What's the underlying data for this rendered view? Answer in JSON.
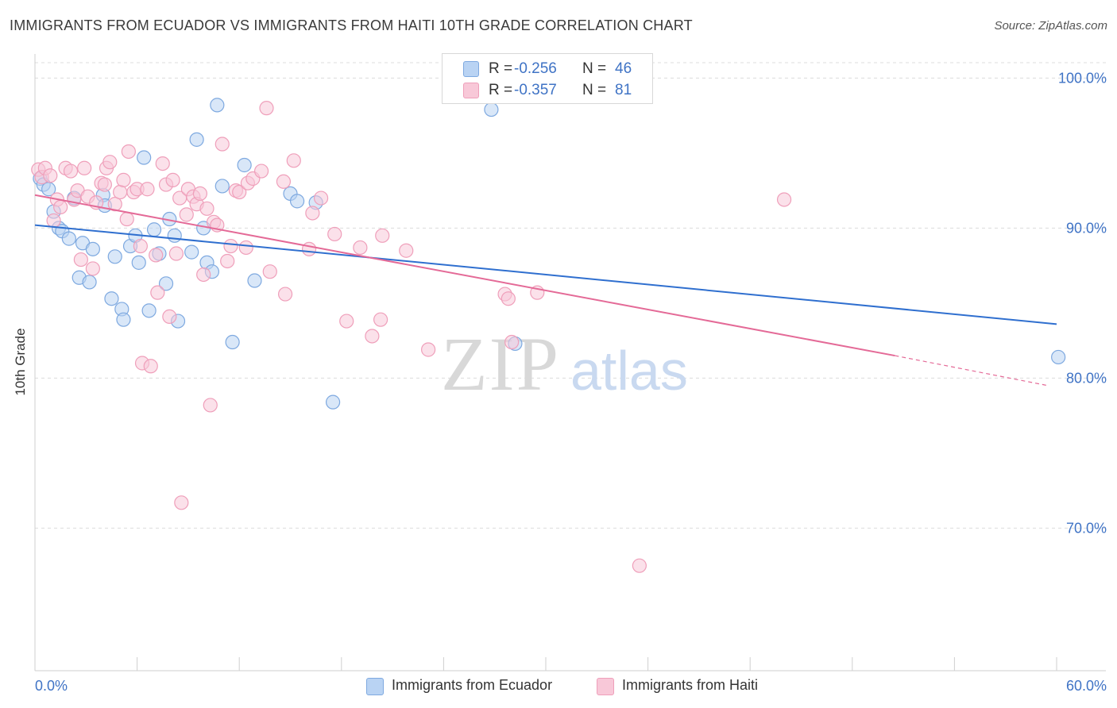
{
  "title": "IMMIGRANTS FROM ECUADOR VS IMMIGRANTS FROM HAITI 10TH GRADE CORRELATION CHART",
  "source": "Source: ZipAtlas.com",
  "watermark": {
    "zip": "ZIP",
    "atlas": "atlas"
  },
  "legend_stats": [
    {
      "r_label": "R =",
      "r_value": "-0.256",
      "n_label": "N =",
      "n_value": "46"
    },
    {
      "r_label": "R =",
      "r_value": "-0.357",
      "n_label": "N =",
      "n_value": "81"
    }
  ],
  "colors": {
    "ecuador_fill": "#b9d3f3",
    "ecuador_stroke": "#7ea9e0",
    "ecuador_line": "#2f6fcf",
    "haiti_fill": "#f8c8d8",
    "haiti_stroke": "#ef9fba",
    "haiti_line": "#e46a97",
    "grid": "#dcdcdc",
    "axis_label": "#3f73c5"
  },
  "chart_data": {
    "type": "scatter",
    "title": "IMMIGRANTS FROM ECUADOR VS IMMIGRANTS FROM HAITI 10TH GRADE CORRELATION CHART",
    "xlabel": "",
    "ylabel": "10th Grade",
    "xlim": [
      0,
      60
    ],
    "ylim": [
      60.5,
      101.5
    ],
    "x_tick_labels": [
      "0.0%",
      "60.0%"
    ],
    "y_ticks": [
      70,
      80,
      90,
      100
    ],
    "y_tick_labels": [
      "70.0%",
      "80.0%",
      "90.0%",
      "100.0%"
    ],
    "grid": true,
    "legend_position": "bottom-center",
    "series": [
      {
        "name": "Immigrants from Ecuador",
        "r": -0.256,
        "n": 46,
        "trend": {
          "x": [
            0,
            60
          ],
          "y": [
            90.2,
            83.6
          ]
        },
        "points": [
          [
            0.3,
            93.3
          ],
          [
            0.5,
            92.9
          ],
          [
            0.8,
            92.6
          ],
          [
            1.1,
            91.1
          ],
          [
            1.4,
            90.0
          ],
          [
            1.6,
            89.8
          ],
          [
            2.0,
            89.3
          ],
          [
            2.3,
            92.0
          ],
          [
            2.6,
            86.7
          ],
          [
            2.8,
            89.0
          ],
          [
            3.2,
            86.4
          ],
          [
            3.4,
            88.6
          ],
          [
            4.0,
            92.2
          ],
          [
            4.1,
            91.5
          ],
          [
            4.5,
            85.3
          ],
          [
            4.7,
            88.1
          ],
          [
            5.1,
            84.6
          ],
          [
            5.2,
            83.9
          ],
          [
            5.6,
            88.8
          ],
          [
            5.9,
            89.5
          ],
          [
            6.1,
            87.7
          ],
          [
            6.4,
            94.7
          ],
          [
            6.7,
            84.5
          ],
          [
            7.0,
            89.9
          ],
          [
            7.3,
            88.3
          ],
          [
            7.7,
            86.3
          ],
          [
            7.9,
            90.6
          ],
          [
            8.2,
            89.5
          ],
          [
            8.4,
            83.8
          ],
          [
            9.2,
            88.4
          ],
          [
            9.5,
            95.9
          ],
          [
            9.9,
            90.0
          ],
          [
            10.1,
            87.7
          ],
          [
            10.4,
            87.1
          ],
          [
            10.7,
            98.2
          ],
          [
            11.0,
            92.8
          ],
          [
            11.6,
            82.4
          ],
          [
            12.3,
            94.2
          ],
          [
            12.9,
            86.5
          ],
          [
            15.0,
            92.3
          ],
          [
            15.4,
            91.8
          ],
          [
            16.5,
            91.7
          ],
          [
            17.5,
            78.4
          ],
          [
            26.8,
            97.9
          ],
          [
            28.2,
            82.3
          ],
          [
            60.1,
            81.4
          ]
        ]
      },
      {
        "name": "Immigrants from Haiti",
        "r": -0.357,
        "n": 81,
        "trend": {
          "x": [
            0,
            50.5
          ],
          "y": [
            92.2,
            81.5
          ]
        },
        "trend_extension": {
          "x": [
            50.5,
            59.5
          ],
          "y": [
            81.5,
            79.5
          ]
        },
        "points": [
          [
            0.2,
            93.9
          ],
          [
            0.4,
            93.4
          ],
          [
            0.6,
            94.0
          ],
          [
            0.9,
            93.5
          ],
          [
            1.1,
            90.5
          ],
          [
            1.3,
            91.9
          ],
          [
            1.5,
            91.4
          ],
          [
            1.8,
            94.0
          ],
          [
            2.1,
            93.8
          ],
          [
            2.3,
            91.9
          ],
          [
            2.5,
            92.5
          ],
          [
            2.7,
            87.9
          ],
          [
            2.9,
            94.0
          ],
          [
            3.1,
            92.1
          ],
          [
            3.4,
            87.3
          ],
          [
            3.6,
            91.7
          ],
          [
            3.9,
            93.0
          ],
          [
            4.1,
            92.9
          ],
          [
            4.2,
            94.0
          ],
          [
            4.4,
            94.4
          ],
          [
            4.7,
            91.6
          ],
          [
            5.0,
            92.4
          ],
          [
            5.2,
            93.2
          ],
          [
            5.4,
            90.6
          ],
          [
            5.5,
            95.1
          ],
          [
            5.8,
            92.4
          ],
          [
            6.0,
            92.6
          ],
          [
            6.2,
            88.8
          ],
          [
            6.3,
            81.0
          ],
          [
            6.6,
            92.6
          ],
          [
            6.8,
            80.8
          ],
          [
            7.1,
            88.2
          ],
          [
            7.2,
            85.7
          ],
          [
            7.5,
            94.3
          ],
          [
            7.7,
            92.9
          ],
          [
            7.9,
            84.1
          ],
          [
            8.1,
            93.2
          ],
          [
            8.3,
            88.3
          ],
          [
            8.5,
            92.0
          ],
          [
            8.6,
            71.7
          ],
          [
            8.9,
            90.9
          ],
          [
            9.0,
            92.6
          ],
          [
            9.3,
            92.1
          ],
          [
            9.5,
            91.6
          ],
          [
            9.7,
            92.3
          ],
          [
            9.9,
            86.9
          ],
          [
            10.1,
            91.3
          ],
          [
            10.3,
            78.2
          ],
          [
            10.5,
            90.4
          ],
          [
            10.7,
            90.2
          ],
          [
            11.0,
            95.6
          ],
          [
            11.3,
            87.8
          ],
          [
            11.5,
            88.8
          ],
          [
            11.8,
            92.5
          ],
          [
            12.0,
            92.4
          ],
          [
            12.4,
            88.7
          ],
          [
            12.5,
            93.0
          ],
          [
            12.8,
            93.3
          ],
          [
            13.3,
            93.8
          ],
          [
            13.6,
            98.0
          ],
          [
            13.8,
            87.1
          ],
          [
            14.6,
            93.1
          ],
          [
            14.7,
            85.6
          ],
          [
            15.2,
            94.5
          ],
          [
            16.1,
            88.6
          ],
          [
            16.3,
            91.0
          ],
          [
            16.8,
            92.0
          ],
          [
            17.6,
            89.6
          ],
          [
            18.3,
            83.8
          ],
          [
            19.1,
            88.7
          ],
          [
            19.8,
            82.8
          ],
          [
            20.3,
            83.9
          ],
          [
            20.4,
            89.5
          ],
          [
            21.8,
            88.5
          ],
          [
            23.1,
            81.9
          ],
          [
            27.6,
            85.6
          ],
          [
            27.8,
            85.3
          ],
          [
            28.0,
            82.4
          ],
          [
            29.5,
            85.7
          ],
          [
            35.5,
            67.5
          ],
          [
            44.0,
            91.9
          ]
        ]
      }
    ]
  },
  "bottom_legend": [
    "Immigrants from Ecuador",
    "Immigrants from Haiti"
  ]
}
